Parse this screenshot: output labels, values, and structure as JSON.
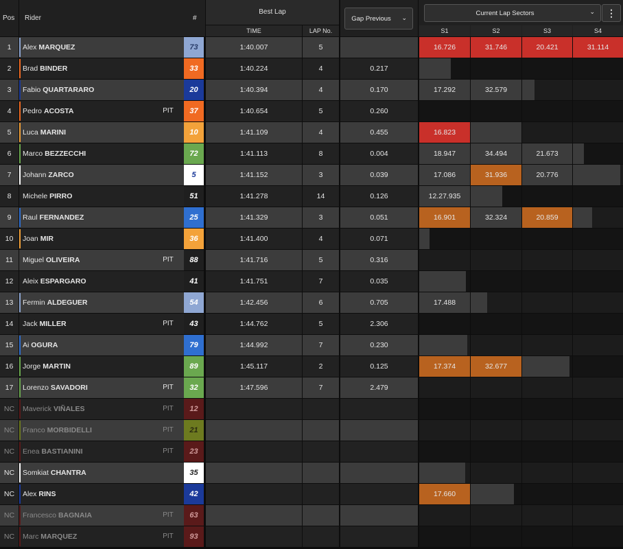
{
  "header": {
    "pos": "Pos",
    "rider": "Rider",
    "num": "#",
    "best_lap": "Best Lap",
    "time": "TIME",
    "lap_no": "LAP No.",
    "gap_select": "Gap Previous",
    "sectors_select": "Current Lap Sectors",
    "sectors": [
      "S1",
      "S2",
      "S3",
      "S4"
    ]
  },
  "colors": {
    "row_odd": "#3c3c3c",
    "row_even": "#222222",
    "sector_purple_red": "#c9302a",
    "sector_orange": "#b8621f",
    "sector_gray": "#3c3c3c",
    "sector_empty_odd": "#1c1c1c",
    "sector_empty_even": "#141414"
  },
  "rows": [
    {
      "pos": "1",
      "first": "Alex",
      "last": "MARQUEZ",
      "pit": "",
      "num": "73",
      "num_bg": "#8fa7d3",
      "num_fg": "#2a3d6a",
      "stripe": "#8fa7d3",
      "time": "1:40.007",
      "lap": "5",
      "gap": "",
      "sectors": [
        {
          "v": "16.726",
          "c": "red"
        },
        {
          "v": "31.746",
          "c": "red"
        },
        {
          "v": "20.421",
          "c": "red"
        },
        {
          "v": "31.114",
          "c": "red"
        }
      ],
      "partial": 0
    },
    {
      "pos": "2",
      "first": "Brad",
      "last": "BINDER",
      "pit": "",
      "num": "33",
      "num_bg": "#f06a22",
      "num_fg": "#ffffff",
      "stripe": "#f06a22",
      "time": "1:40.224",
      "lap": "4",
      "gap": "0.217",
      "sectors": [],
      "partial": 0.62
    },
    {
      "pos": "3",
      "first": "Fabio",
      "last": "QUARTARARO",
      "pit": "",
      "num": "20",
      "num_bg": "#1b3a9a",
      "num_fg": "#ffffff",
      "stripe": "#1b3a9a",
      "time": "1:40.394",
      "lap": "4",
      "gap": "0.170",
      "sectors": [
        {
          "v": "17.292",
          "c": "gray"
        },
        {
          "v": "32.579",
          "c": "gray"
        }
      ],
      "partial": 0.25
    },
    {
      "pos": "4",
      "first": "Pedro",
      "last": "ACOSTA",
      "pit": "PIT",
      "num": "37",
      "num_bg": "#f06a22",
      "num_fg": "#ffffff",
      "stripe": "#f06a22",
      "time": "1:40.654",
      "lap": "5",
      "gap": "0.260",
      "sectors": [],
      "partial": 0
    },
    {
      "pos": "5",
      "first": "Luca",
      "last": "MARINI",
      "pit": "",
      "num": "10",
      "num_bg": "#f3a23a",
      "num_fg": "#ffffff",
      "stripe": "#f3a23a",
      "time": "1:41.109",
      "lap": "4",
      "gap": "0.455",
      "sectors": [
        {
          "v": "16.823",
          "c": "red"
        }
      ],
      "partial": 1
    },
    {
      "pos": "6",
      "first": "Marco",
      "last": "BEZZECCHI",
      "pit": "",
      "num": "72",
      "num_bg": "#6aa84f",
      "num_fg": "#ffffff",
      "stripe": "#6aa84f",
      "time": "1:41.113",
      "lap": "8",
      "gap": "0.004",
      "sectors": [
        {
          "v": "18.947",
          "c": "gray"
        },
        {
          "v": "34.494",
          "c": "gray"
        },
        {
          "v": "21.673",
          "c": "gray"
        }
      ],
      "partial": 0.22
    },
    {
      "pos": "7",
      "first": "Johann",
      "last": "ZARCO",
      "pit": "",
      "num": "5",
      "num_bg": "#ffffff",
      "num_fg": "#1b3a9a",
      "stripe": "#ffffff",
      "time": "1:41.152",
      "lap": "3",
      "gap": "0.039",
      "sectors": [
        {
          "v": "17.086",
          "c": "gray"
        },
        {
          "v": "31.936",
          "c": "orange"
        },
        {
          "v": "20.776",
          "c": "gray"
        }
      ],
      "partial": 0.95
    },
    {
      "pos": "8",
      "first": "Michele",
      "last": "PIRRO",
      "pit": "",
      "num": "51",
      "num_bg": "#1f1f1f",
      "num_fg": "#ffffff",
      "stripe": "",
      "time": "1:41.278",
      "lap": "14",
      "gap": "0.126",
      "sectors": [
        {
          "v": "12.27.935",
          "c": "gray"
        }
      ],
      "partial": 0.62
    },
    {
      "pos": "9",
      "first": "Raul",
      "last": "FERNANDEZ",
      "pit": "",
      "num": "25",
      "num_bg": "#2f6fd0",
      "num_fg": "#ffffff",
      "stripe": "#2f6fd0",
      "time": "1:41.329",
      "lap": "3",
      "gap": "0.051",
      "sectors": [
        {
          "v": "16.901",
          "c": "orange"
        },
        {
          "v": "32.324",
          "c": "gray"
        },
        {
          "v": "20.859",
          "c": "orange"
        }
      ],
      "partial": 0.38
    },
    {
      "pos": "10",
      "first": "Joan",
      "last": "MIR",
      "pit": "",
      "num": "36",
      "num_bg": "#f3a23a",
      "num_fg": "#ffffff",
      "stripe": "#f3a23a",
      "time": "1:41.400",
      "lap": "4",
      "gap": "0.071",
      "sectors": [],
      "partial": 0.2
    },
    {
      "pos": "11",
      "first": "Miguel",
      "last": "OLIVEIRA",
      "pit": "PIT",
      "num": "88",
      "num_bg": "#1f1f1f",
      "num_fg": "#ffffff",
      "stripe": "",
      "time": "1:41.716",
      "lap": "5",
      "gap": "0.316",
      "sectors": [],
      "partial": 0
    },
    {
      "pos": "12",
      "first": "Aleix",
      "last": "ESPARGARO",
      "pit": "",
      "num": "41",
      "num_bg": "#1f1f1f",
      "num_fg": "#ffffff",
      "stripe": "",
      "time": "1:41.751",
      "lap": "7",
      "gap": "0.035",
      "sectors": [],
      "partial": 0.92
    },
    {
      "pos": "13",
      "first": "Fermin",
      "last": "ALDEGUER",
      "pit": "",
      "num": "54",
      "num_bg": "#8fa7d3",
      "num_fg": "#ffffff",
      "stripe": "#8fa7d3",
      "time": "1:42.456",
      "lap": "6",
      "gap": "0.705",
      "sectors": [
        {
          "v": "17.488",
          "c": "gray"
        }
      ],
      "partial": 0.32
    },
    {
      "pos": "14",
      "first": "Jack",
      "last": "MILLER",
      "pit": "PIT",
      "num": "43",
      "num_bg": "#1f1f1f",
      "num_fg": "#ffffff",
      "stripe": "",
      "time": "1:44.762",
      "lap": "5",
      "gap": "2.306",
      "sectors": [],
      "partial": 0
    },
    {
      "pos": "15",
      "first": "Ai",
      "last": "OGURA",
      "pit": "",
      "num": "79",
      "num_bg": "#2f6fd0",
      "num_fg": "#ffffff",
      "stripe": "#2f6fd0",
      "time": "1:44.992",
      "lap": "7",
      "gap": "0.230",
      "sectors": [],
      "partial": 0.95
    },
    {
      "pos": "16",
      "first": "Jorge",
      "last": "MARTIN",
      "pit": "",
      "num": "89",
      "num_bg": "#6aa84f",
      "num_fg": "#ffffff",
      "stripe": "#6aa84f",
      "time": "1:45.117",
      "lap": "2",
      "gap": "0.125",
      "sectors": [
        {
          "v": "17.374",
          "c": "orange"
        },
        {
          "v": "32.677",
          "c": "orange"
        }
      ],
      "partial": 0.95
    },
    {
      "pos": "17",
      "first": "Lorenzo",
      "last": "SAVADORI",
      "pit": "PIT",
      "num": "32",
      "num_bg": "#6aa84f",
      "num_fg": "#ffffff",
      "stripe": "#6aa84f",
      "time": "1:47.596",
      "lap": "7",
      "gap": "2.479",
      "sectors": [],
      "partial": 0
    },
    {
      "pos": "NC",
      "first": "Maverick",
      "last": "VIÑALES",
      "pit": "PIT",
      "num": "12",
      "num_bg": "#5a1a1a",
      "num_fg": "#d09a9a",
      "stripe": "#5a1a1a",
      "time": "",
      "lap": "",
      "gap": "",
      "sectors": [],
      "partial": 0,
      "dim": true
    },
    {
      "pos": "NC",
      "first": "Franco",
      "last": "MORBIDELLI",
      "pit": "PIT",
      "num": "21",
      "num_bg": "#6d7a1f",
      "num_fg": "#2a2a10",
      "stripe": "#6d7a1f",
      "time": "",
      "lap": "",
      "gap": "",
      "sectors": [],
      "partial": 0,
      "dim": true
    },
    {
      "pos": "NC",
      "first": "Enea",
      "last": "BASTIANINI",
      "pit": "PIT",
      "num": "23",
      "num_bg": "#5a1a1a",
      "num_fg": "#d09a9a",
      "stripe": "#5a1a1a",
      "time": "",
      "lap": "",
      "gap": "",
      "sectors": [],
      "partial": 0,
      "dim": true
    },
    {
      "pos": "NC",
      "first": "Somkiat",
      "last": "CHANTRA",
      "pit": "",
      "num": "35",
      "num_bg": "#ffffff",
      "num_fg": "#222222",
      "stripe": "#ffffff",
      "time": "",
      "lap": "",
      "gap": "",
      "sectors": [],
      "partial": 0.9
    },
    {
      "pos": "NC",
      "first": "Alex",
      "last": "RINS",
      "pit": "",
      "num": "42",
      "num_bg": "#1b3a9a",
      "num_fg": "#ffffff",
      "stripe": "#1b3a9a",
      "time": "",
      "lap": "",
      "gap": "",
      "sectors": [
        {
          "v": "17.660",
          "c": "orange"
        }
      ],
      "partial": 0.85
    },
    {
      "pos": "NC",
      "first": "Francesco",
      "last": "BAGNAIA",
      "pit": "PIT",
      "num": "63",
      "num_bg": "#5a1a1a",
      "num_fg": "#d09a9a",
      "stripe": "#5a1a1a",
      "time": "",
      "lap": "",
      "gap": "",
      "sectors": [],
      "partial": 0,
      "dim": true
    },
    {
      "pos": "NC",
      "first": "Marc",
      "last": "MARQUEZ",
      "pit": "PIT",
      "num": "93",
      "num_bg": "#5a1a1a",
      "num_fg": "#d09a9a",
      "stripe": "#5a1a1a",
      "time": "",
      "lap": "",
      "gap": "",
      "sectors": [],
      "partial": 0,
      "dim": true
    }
  ]
}
